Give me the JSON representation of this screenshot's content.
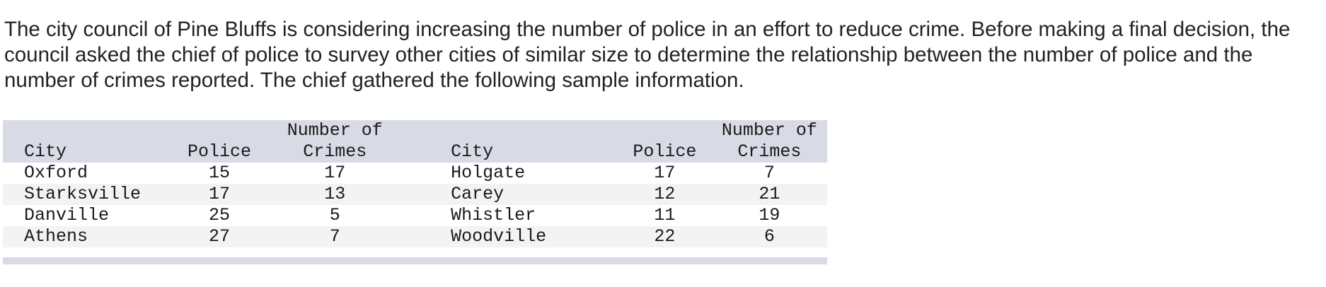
{
  "problem": {
    "text": "The city council of Pine Bluffs is considering increasing the number of police in an effort to reduce crime. Before making a final decision, the council asked the chief of police to survey other cities of similar size to determine the relationship between the number of police and the number of crimes reported. The chief gathered the following sample information."
  },
  "table": {
    "headers": [
      "City",
      "Police",
      "Number of\nCrimes",
      "City",
      "Police",
      "Number of\nCrimes"
    ],
    "rows": [
      [
        "Oxford",
        "15",
        "17",
        "Holgate",
        "17",
        "7"
      ],
      [
        "Starksville",
        "17",
        "13",
        "Carey",
        "12",
        "21"
      ],
      [
        "Danville",
        "25",
        "5",
        "Whistler",
        "11",
        "19"
      ],
      [
        "Athens",
        "27",
        "7",
        "Woodville",
        "22",
        "6"
      ]
    ]
  }
}
